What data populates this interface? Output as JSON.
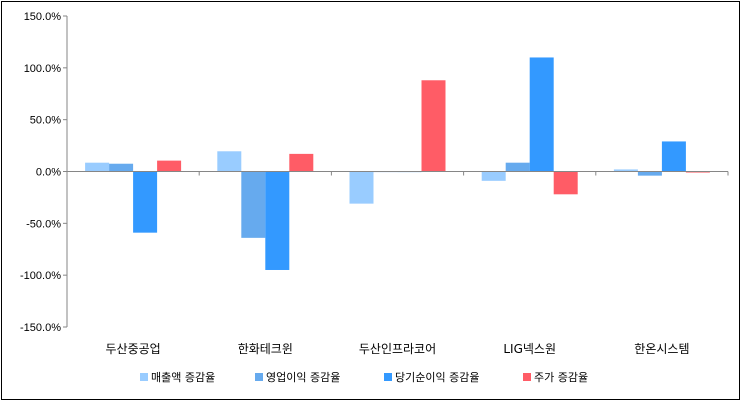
{
  "chart_data": {
    "type": "bar",
    "title": "",
    "xlabel": "",
    "ylabel": "",
    "categories": [
      "두산중공업",
      "한화테크윈",
      "두산인프라코어",
      "LIG넥스원",
      "한온시스템"
    ],
    "series": [
      {
        "name": "매출액 증감율",
        "color": "#99ccff",
        "values": [
          8.5,
          19.5,
          -31.0,
          -9.0,
          2.0
        ]
      },
      {
        "name": "영업이익 증감율",
        "color": "#66aaee",
        "values": [
          7.5,
          -64.0,
          0.0,
          8.5,
          -4.0
        ]
      },
      {
        "name": "당기순이익 증감율",
        "color": "#3399ff",
        "values": [
          -59.0,
          -95.0,
          0.0,
          110.0,
          29.0
        ]
      },
      {
        "name": "주가 증감율",
        "color": "#ff5c66",
        "values": [
          10.5,
          17.0,
          88.0,
          -22.0,
          -1.0
        ]
      }
    ],
    "ylim": [
      -150,
      150
    ],
    "yticks": [
      -150,
      -100,
      -50,
      0,
      50,
      100,
      150
    ],
    "ytick_labels": [
      "-150.0%",
      "-100.0%",
      "-50.0%",
      "0.0%",
      "50.0%",
      "100.0%",
      "150.0%"
    ],
    "grid": false,
    "legend": "bottom"
  }
}
